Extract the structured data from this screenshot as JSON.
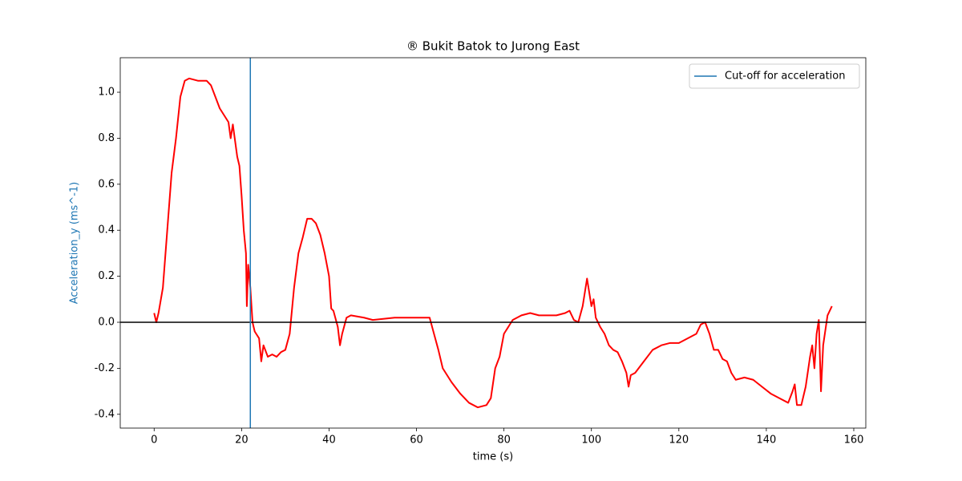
{
  "chart_data": {
    "type": "line",
    "title": "® Bukit Batok to Jurong East",
    "xlabel": "time (s)",
    "ylabel": "Acceleration_y (ms^-1)",
    "ylabel_color": "#1f77b4",
    "xlim": [
      -7.75,
      162.75
    ],
    "ylim": [
      -0.46,
      1.15
    ],
    "xticks": [
      0,
      20,
      40,
      60,
      80,
      100,
      120,
      140,
      160
    ],
    "yticks": [
      -0.4,
      -0.2,
      {
        "value": 0,
        "label": "0.0"
      },
      0.2,
      0.4,
      0.6,
      0.8,
      {
        "value": 1,
        "label": "1.0"
      }
    ],
    "legend": "upper right",
    "series": [
      {
        "color": "#ff0000",
        "x": [
          0,
          0.5,
          1,
          2,
          3,
          4,
          5,
          6,
          7,
          8,
          10,
          11,
          12,
          13,
          14,
          15,
          16,
          17,
          17.5,
          18,
          19,
          19.5,
          20,
          20.5,
          21,
          21.2,
          21.5,
          22,
          22.5,
          23,
          24,
          24.5,
          25,
          26,
          27,
          28,
          29,
          30,
          31,
          32,
          33,
          34,
          35,
          36,
          37,
          38,
          39,
          40,
          40.5,
          41,
          42,
          42.5,
          43,
          44,
          45,
          48,
          50,
          55,
          60,
          62,
          63,
          64,
          65,
          66,
          68,
          70,
          72,
          74,
          76,
          77,
          78,
          79,
          80,
          82,
          84,
          86,
          88,
          90,
          92,
          94,
          95,
          96,
          97,
          98,
          99,
          100,
          100.5,
          101,
          102,
          103,
          104,
          105,
          106,
          107,
          108,
          108.5,
          109,
          110,
          112,
          114,
          116,
          118,
          120,
          122,
          124,
          125,
          126,
          127,
          128,
          129,
          130,
          131,
          132,
          133,
          135,
          137,
          139,
          141,
          143,
          145,
          146,
          146.5,
          147,
          148,
          149,
          150,
          150.5,
          151,
          151.5,
          152,
          152.5,
          153,
          154,
          155
        ],
        "y": [
          0.04,
          0.0,
          0.04,
          0.15,
          0.4,
          0.65,
          0.8,
          0.98,
          1.05,
          1.06,
          1.05,
          1.05,
          1.05,
          1.03,
          0.98,
          0.93,
          0.9,
          0.87,
          0.8,
          0.86,
          0.72,
          0.68,
          0.55,
          0.4,
          0.3,
          0.07,
          0.25,
          0.15,
          0.0,
          -0.04,
          -0.07,
          -0.17,
          -0.1,
          -0.15,
          -0.14,
          -0.15,
          -0.13,
          -0.12,
          -0.05,
          0.15,
          0.3,
          0.37,
          0.45,
          0.45,
          0.43,
          0.38,
          0.3,
          0.2,
          0.06,
          0.05,
          -0.02,
          -0.1,
          -0.05,
          0.02,
          0.03,
          0.02,
          0.01,
          0.02,
          0.02,
          0.02,
          0.02,
          -0.05,
          -0.12,
          -0.2,
          -0.26,
          -0.31,
          -0.35,
          -0.37,
          -0.36,
          -0.33,
          -0.2,
          -0.15,
          -0.05,
          0.01,
          0.03,
          0.04,
          0.03,
          0.03,
          0.03,
          0.04,
          0.05,
          0.01,
          0.0,
          0.07,
          0.19,
          0.07,
          0.1,
          0.02,
          -0.02,
          -0.05,
          -0.1,
          -0.12,
          -0.13,
          -0.17,
          -0.22,
          -0.28,
          -0.23,
          -0.22,
          -0.17,
          -0.12,
          -0.1,
          -0.09,
          -0.09,
          -0.07,
          -0.05,
          -0.01,
          0.0,
          -0.05,
          -0.12,
          -0.12,
          -0.16,
          -0.17,
          -0.22,
          -0.25,
          -0.24,
          -0.25,
          -0.28,
          -0.31,
          -0.33,
          -0.35,
          -0.3,
          -0.27,
          -0.36,
          -0.36,
          -0.28,
          -0.15,
          -0.1,
          -0.2,
          -0.05,
          0.01,
          -0.3,
          -0.1,
          0.03,
          0.07
        ]
      }
    ],
    "vlines": [
      {
        "x": 22,
        "name": "Cut-off for acceleration",
        "color": "#1f77b4"
      }
    ],
    "hlines": [
      {
        "y": 0,
        "color": "#000000"
      }
    ]
  }
}
